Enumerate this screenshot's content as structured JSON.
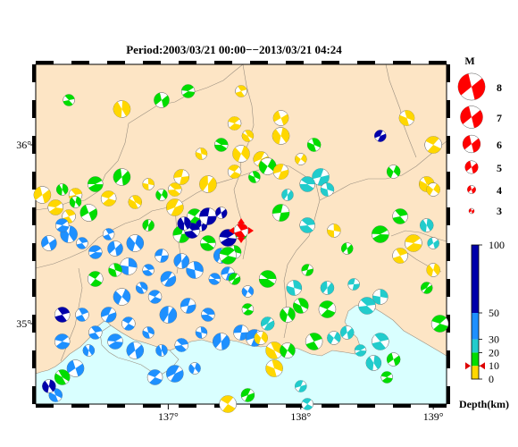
{
  "title": "Period:2003/03/21 00:00−−2013/03/21 04:24",
  "map": {
    "lon_range": [
      136.0,
      139.1
    ],
    "lat_range": [
      34.55,
      36.45
    ],
    "x_ticks": [
      {
        "label": "137°",
        "lon": 137.0
      },
      {
        "label": "138°",
        "lon": 138.0
      },
      {
        "label": "139°",
        "lon": 139.0
      }
    ],
    "y_ticks": [
      {
        "label": "36°",
        "lat": 36.0
      },
      {
        "label": "35°",
        "lat": 35.0
      }
    ],
    "colors": {
      "land": "#fde5c5",
      "sea": "#d9ffff",
      "border": "#9a8f80"
    }
  },
  "magnitude_legend": {
    "title": "M",
    "items": [
      {
        "label": "8",
        "m": 8
      },
      {
        "label": "7",
        "m": 7
      },
      {
        "label": "6",
        "m": 6
      },
      {
        "label": "5",
        "m": 5
      },
      {
        "label": "4",
        "m": 4
      },
      {
        "label": "3",
        "m": 3
      }
    ]
  },
  "depth_legend": {
    "title": "Depth(km)",
    "ticks": [
      {
        "label": "100",
        "depth": 100
      },
      {
        "label": "50",
        "depth": 50
      },
      {
        "label": "30",
        "depth": 30
      },
      {
        "label": "20",
        "depth": 20
      },
      {
        "label": "10",
        "depth": 10
      },
      {
        "label": "0",
        "depth": 0
      }
    ],
    "bands": [
      {
        "from": 0,
        "to": 10,
        "color": "#ffd700"
      },
      {
        "from": 10,
        "to": 20,
        "color": "#00dd00"
      },
      {
        "from": 20,
        "to": 30,
        "color": "#22cccc"
      },
      {
        "from": 30,
        "to": 50,
        "color": "#1e90ff"
      },
      {
        "from": 50,
        "to": 100,
        "color": "#0000aa"
      }
    ],
    "marker_depth": 10,
    "marker_color": "#dd0000"
  },
  "main_event": {
    "lon": 137.55,
    "lat": 35.52,
    "color": "#ff0000"
  },
  "chart_data": {
    "type": "scatter",
    "x_field": "longitude",
    "y_field": "latitude",
    "color_field": "depth_km",
    "points": [
      {
        "lon": 136.25,
        "lat": 36.25,
        "d": 15
      },
      {
        "lon": 136.65,
        "lat": 36.2,
        "d": 5
      },
      {
        "lon": 136.95,
        "lat": 36.25,
        "d": 15
      },
      {
        "lon": 137.15,
        "lat": 36.3,
        "d": 15
      },
      {
        "lon": 137.55,
        "lat": 36.3,
        "d": 5
      },
      {
        "lon": 137.85,
        "lat": 36.05,
        "d": 5
      },
      {
        "lon": 137.85,
        "lat": 36.15,
        "d": 5
      },
      {
        "lon": 137.5,
        "lat": 36.12,
        "d": 5
      },
      {
        "lon": 137.6,
        "lat": 36.05,
        "d": 5
      },
      {
        "lon": 137.55,
        "lat": 35.95,
        "d": 5
      },
      {
        "lon": 137.7,
        "lat": 35.92,
        "d": 5
      },
      {
        "lon": 137.5,
        "lat": 35.85,
        "d": 5
      },
      {
        "lon": 137.65,
        "lat": 35.82,
        "d": 15
      },
      {
        "lon": 137.75,
        "lat": 35.88,
        "d": 15
      },
      {
        "lon": 137.85,
        "lat": 35.85,
        "d": 5
      },
      {
        "lon": 137.4,
        "lat": 36.0,
        "d": 15
      },
      {
        "lon": 137.25,
        "lat": 35.95,
        "d": 5
      },
      {
        "lon": 137.3,
        "lat": 35.78,
        "d": 5
      },
      {
        "lon": 137.1,
        "lat": 35.82,
        "d": 5
      },
      {
        "lon": 137.05,
        "lat": 35.75,
        "d": 5
      },
      {
        "lon": 136.85,
        "lat": 35.78,
        "d": 5
      },
      {
        "lon": 136.65,
        "lat": 35.82,
        "d": 15
      },
      {
        "lon": 136.45,
        "lat": 35.78,
        "d": 15
      },
      {
        "lon": 136.3,
        "lat": 35.72,
        "d": 5
      },
      {
        "lon": 136.2,
        "lat": 35.75,
        "d": 15
      },
      {
        "lon": 136.05,
        "lat": 35.72,
        "d": 5
      },
      {
        "lon": 136.15,
        "lat": 35.65,
        "d": 5
      },
      {
        "lon": 136.25,
        "lat": 35.6,
        "d": 5
      },
      {
        "lon": 136.3,
        "lat": 35.68,
        "d": 15
      },
      {
        "lon": 136.4,
        "lat": 35.62,
        "d": 15
      },
      {
        "lon": 136.55,
        "lat": 35.7,
        "d": 5
      },
      {
        "lon": 136.75,
        "lat": 35.68,
        "d": 5
      },
      {
        "lon": 136.95,
        "lat": 35.72,
        "d": 15
      },
      {
        "lon": 137.05,
        "lat": 35.65,
        "d": 5
      },
      {
        "lon": 137.2,
        "lat": 35.6,
        "d": 15
      },
      {
        "lon": 138.1,
        "lat": 36.0,
        "d": 15
      },
      {
        "lon": 138.0,
        "lat": 35.92,
        "d": 5
      },
      {
        "lon": 138.15,
        "lat": 35.82,
        "d": 25
      },
      {
        "lon": 138.05,
        "lat": 35.78,
        "d": 25
      },
      {
        "lon": 138.2,
        "lat": 35.75,
        "d": 25
      },
      {
        "lon": 137.9,
        "lat": 35.72,
        "d": 25
      },
      {
        "lon": 137.85,
        "lat": 35.62,
        "d": 15
      },
      {
        "lon": 138.05,
        "lat": 35.55,
        "d": 25
      },
      {
        "lon": 138.25,
        "lat": 35.52,
        "d": 5
      },
      {
        "lon": 138.35,
        "lat": 35.42,
        "d": 15
      },
      {
        "lon": 138.6,
        "lat": 35.5,
        "d": 15
      },
      {
        "lon": 138.75,
        "lat": 35.6,
        "d": 15
      },
      {
        "lon": 138.95,
        "lat": 35.55,
        "d": 25
      },
      {
        "lon": 139.0,
        "lat": 35.45,
        "d": 25
      },
      {
        "lon": 138.85,
        "lat": 35.45,
        "d": 5
      },
      {
        "lon": 138.75,
        "lat": 35.38,
        "d": 5
      },
      {
        "lon": 139.0,
        "lat": 35.3,
        "d": 5
      },
      {
        "lon": 138.95,
        "lat": 35.2,
        "d": 15
      },
      {
        "lon": 139.05,
        "lat": 35.0,
        "d": 15
      },
      {
        "lon": 138.95,
        "lat": 35.78,
        "d": 5
      },
      {
        "lon": 138.7,
        "lat": 35.85,
        "d": 15
      },
      {
        "lon": 138.6,
        "lat": 36.05,
        "d": 60
      },
      {
        "lon": 139.0,
        "lat": 36.0,
        "d": 5
      },
      {
        "lon": 138.8,
        "lat": 36.15,
        "d": 5
      },
      {
        "lon": 139.0,
        "lat": 35.75,
        "d": 5
      },
      {
        "lon": 138.05,
        "lat": 35.3,
        "d": 15
      },
      {
        "lon": 137.75,
        "lat": 35.25,
        "d": 15
      },
      {
        "lon": 137.95,
        "lat": 35.2,
        "d": 25
      },
      {
        "lon": 138.2,
        "lat": 35.2,
        "d": 25
      },
      {
        "lon": 138.4,
        "lat": 35.22,
        "d": 25
      },
      {
        "lon": 138.5,
        "lat": 35.1,
        "d": 25
      },
      {
        "lon": 138.6,
        "lat": 35.15,
        "d": 25
      },
      {
        "lon": 138.35,
        "lat": 34.95,
        "d": 25
      },
      {
        "lon": 138.45,
        "lat": 34.85,
        "d": 25
      },
      {
        "lon": 138.6,
        "lat": 34.9,
        "d": 25
      },
      {
        "lon": 138.55,
        "lat": 34.78,
        "d": 25
      },
      {
        "lon": 138.7,
        "lat": 34.8,
        "d": 15
      },
      {
        "lon": 138.65,
        "lat": 34.7,
        "d": 15
      },
      {
        "lon": 138.1,
        "lat": 34.9,
        "d": 15
      },
      {
        "lon": 137.9,
        "lat": 35.05,
        "d": 15
      },
      {
        "lon": 137.75,
        "lat": 35.0,
        "d": 25
      },
      {
        "lon": 137.6,
        "lat": 35.08,
        "d": 15
      },
      {
        "lon": 137.8,
        "lat": 34.85,
        "d": 5
      },
      {
        "lon": 137.9,
        "lat": 34.85,
        "d": 15
      },
      {
        "lon": 137.6,
        "lat": 34.6,
        "d": 15
      },
      {
        "lon": 138.05,
        "lat": 34.55,
        "d": 25
      },
      {
        "lon": 137.8,
        "lat": 34.75,
        "d": 5
      },
      {
        "lon": 137.4,
        "lat": 35.38,
        "d": 35
      },
      {
        "lon": 137.45,
        "lat": 35.28,
        "d": 35
      },
      {
        "lon": 137.35,
        "lat": 35.25,
        "d": 35
      },
      {
        "lon": 137.2,
        "lat": 35.3,
        "d": 35
      },
      {
        "lon": 137.1,
        "lat": 35.35,
        "d": 35
      },
      {
        "lon": 136.95,
        "lat": 35.38,
        "d": 35
      },
      {
        "lon": 136.85,
        "lat": 35.3,
        "d": 35
      },
      {
        "lon": 136.7,
        "lat": 35.32,
        "d": 35
      },
      {
        "lon": 136.6,
        "lat": 35.42,
        "d": 35
      },
      {
        "lon": 136.45,
        "lat": 35.4,
        "d": 35
      },
      {
        "lon": 136.35,
        "lat": 35.45,
        "d": 35
      },
      {
        "lon": 136.25,
        "lat": 35.5,
        "d": 35
      },
      {
        "lon": 136.1,
        "lat": 35.45,
        "d": 35
      },
      {
        "lon": 136.2,
        "lat": 35.55,
        "d": 35
      },
      {
        "lon": 136.55,
        "lat": 35.5,
        "d": 35
      },
      {
        "lon": 136.75,
        "lat": 35.45,
        "d": 35
      },
      {
        "lon": 137.0,
        "lat": 35.25,
        "d": 35
      },
      {
        "lon": 136.9,
        "lat": 35.15,
        "d": 35
      },
      {
        "lon": 136.8,
        "lat": 35.2,
        "d": 35
      },
      {
        "lon": 136.65,
        "lat": 35.15,
        "d": 35
      },
      {
        "lon": 136.55,
        "lat": 35.05,
        "d": 35
      },
      {
        "lon": 136.7,
        "lat": 35.0,
        "d": 35
      },
      {
        "lon": 136.85,
        "lat": 34.95,
        "d": 35
      },
      {
        "lon": 137.0,
        "lat": 35.05,
        "d": 35
      },
      {
        "lon": 137.15,
        "lat": 35.1,
        "d": 35
      },
      {
        "lon": 137.3,
        "lat": 35.05,
        "d": 35
      },
      {
        "lon": 137.25,
        "lat": 34.95,
        "d": 35
      },
      {
        "lon": 137.4,
        "lat": 34.9,
        "d": 35
      },
      {
        "lon": 137.55,
        "lat": 34.95,
        "d": 35
      },
      {
        "lon": 137.1,
        "lat": 34.88,
        "d": 35
      },
      {
        "lon": 136.95,
        "lat": 34.85,
        "d": 35
      },
      {
        "lon": 136.75,
        "lat": 34.85,
        "d": 35
      },
      {
        "lon": 136.6,
        "lat": 34.9,
        "d": 35
      },
      {
        "lon": 136.45,
        "lat": 34.95,
        "d": 35
      },
      {
        "lon": 136.4,
        "lat": 34.85,
        "d": 35
      },
      {
        "lon": 136.3,
        "lat": 34.75,
        "d": 35
      },
      {
        "lon": 136.2,
        "lat": 34.9,
        "d": 35
      },
      {
        "lon": 136.35,
        "lat": 35.05,
        "d": 35
      },
      {
        "lon": 137.2,
        "lat": 34.75,
        "d": 35
      },
      {
        "lon": 137.05,
        "lat": 34.72,
        "d": 35
      },
      {
        "lon": 136.9,
        "lat": 34.7,
        "d": 35
      },
      {
        "lon": 136.15,
        "lat": 34.6,
        "d": 35
      },
      {
        "lon": 137.6,
        "lat": 35.18,
        "d": 35
      },
      {
        "lon": 137.65,
        "lat": 34.92,
        "d": 35
      },
      {
        "lon": 136.45,
        "lat": 35.25,
        "d": 15
      },
      {
        "lon": 136.6,
        "lat": 35.3,
        "d": 15
      },
      {
        "lon": 136.85,
        "lat": 35.55,
        "d": 15
      },
      {
        "lon": 137.1,
        "lat": 35.5,
        "d": 15
      },
      {
        "lon": 137.3,
        "lat": 35.45,
        "d": 15
      },
      {
        "lon": 137.5,
        "lat": 35.4,
        "d": 15
      },
      {
        "lon": 137.25,
        "lat": 35.55,
        "d": 80
      },
      {
        "lon": 137.3,
        "lat": 35.6,
        "d": 80
      },
      {
        "lon": 137.18,
        "lat": 35.52,
        "d": 80
      },
      {
        "lon": 137.12,
        "lat": 35.56,
        "d": 80
      },
      {
        "lon": 137.4,
        "lat": 35.62,
        "d": 80
      },
      {
        "lon": 137.45,
        "lat": 35.48,
        "d": 80
      },
      {
        "lon": 136.2,
        "lat": 35.05,
        "d": 80
      },
      {
        "lon": 136.1,
        "lat": 34.65,
        "d": 80
      },
      {
        "lon": 137.55,
        "lat": 35.5,
        "d": 15
      },
      {
        "lon": 137.45,
        "lat": 35.38,
        "d": 15
      },
      {
        "lon": 136.2,
        "lat": 34.7,
        "d": 15
      },
      {
        "lon": 137.7,
        "lat": 34.92,
        "d": 5
      },
      {
        "lon": 137.5,
        "lat": 35.25,
        "d": 15
      },
      {
        "lon": 138.2,
        "lat": 35.08,
        "d": 15
      },
      {
        "lon": 138.0,
        "lat": 35.1,
        "d": 15
      },
      {
        "lon": 138.25,
        "lat": 34.92,
        "d": 25
      },
      {
        "lon": 138.0,
        "lat": 34.65,
        "d": 25
      },
      {
        "lon": 137.45,
        "lat": 34.55,
        "d": 5
      }
    ]
  }
}
